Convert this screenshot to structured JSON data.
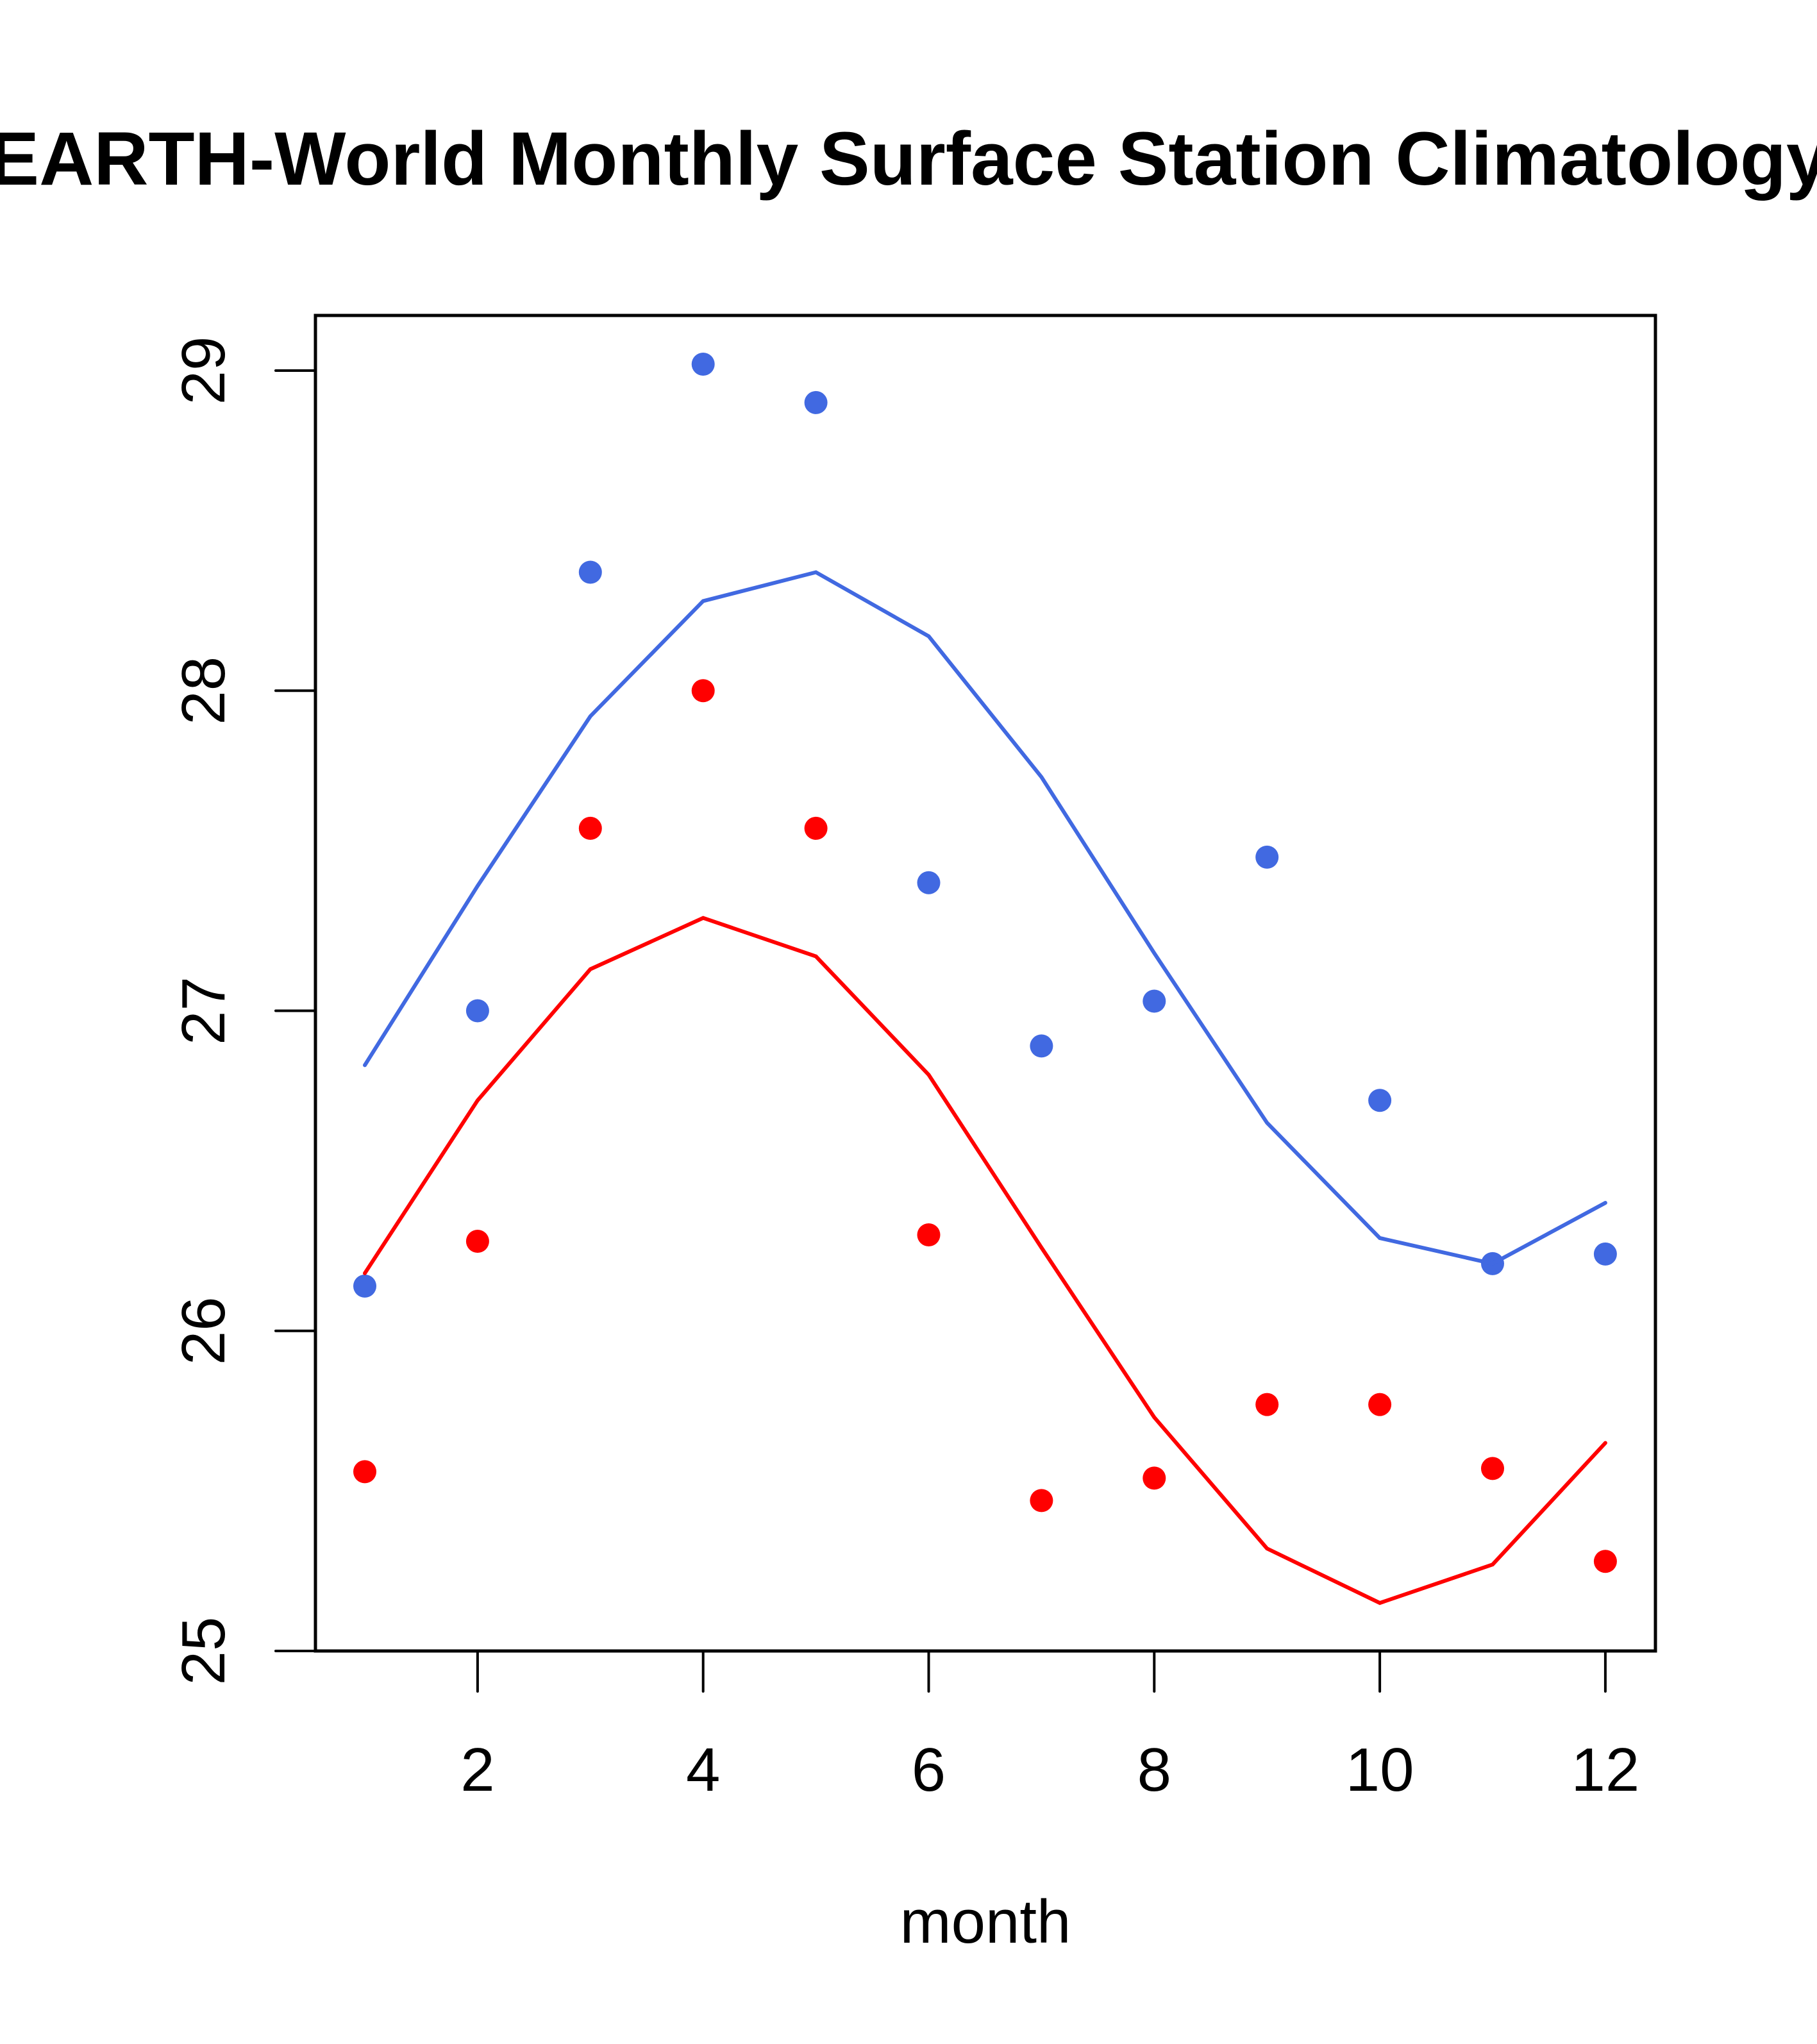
{
  "chart_data": {
    "type": "scatter",
    "title": "ERA-EARTH-World Monthly Surface Station Climatology",
    "title_visible": "EARTH-World Monthly Surface Station Climatology",
    "xlabel": "month",
    "ylabel": "",
    "xlim": [
      0.56,
      12.44
    ],
    "ylim": [
      25,
      29.17
    ],
    "xticks": [
      2,
      4,
      6,
      8,
      10,
      12
    ],
    "xtick_labels": [
      "2",
      "4",
      "6",
      "8",
      "10",
      "12"
    ],
    "yticks": [
      25,
      26,
      27,
      28,
      29
    ],
    "ytick_labels": [
      "25",
      "26",
      "27",
      "28",
      "29"
    ],
    "grid": false,
    "legend": null,
    "x": [
      1,
      2,
      3,
      4,
      5,
      6,
      7,
      8,
      9,
      10,
      11,
      12
    ],
    "series": [
      {
        "name": "blue points",
        "kind": "points",
        "color": "#4169E1",
        "values": [
          26.14,
          27.0,
          28.37,
          29.02,
          28.9,
          27.4,
          26.89,
          27.03,
          27.48,
          26.72,
          26.21,
          26.24
        ]
      },
      {
        "name": "blue line",
        "kind": "line",
        "color": "#4169E1",
        "values": [
          26.83,
          27.39,
          27.92,
          28.28,
          28.37,
          28.17,
          27.73,
          27.18,
          26.65,
          26.29,
          26.21,
          26.4
        ]
      },
      {
        "name": "red points",
        "kind": "points",
        "color": "#FF0000",
        "values": [
          25.56,
          26.28,
          27.57,
          28.0,
          27.57,
          26.3,
          25.47,
          25.54,
          25.77,
          25.77,
          25.57,
          25.28
        ]
      },
      {
        "name": "red line",
        "kind": "line",
        "color": "#FF0000",
        "values": [
          26.18,
          26.72,
          27.13,
          27.29,
          27.17,
          26.8,
          26.26,
          25.73,
          25.32,
          25.15,
          25.27,
          25.65
        ]
      }
    ]
  }
}
